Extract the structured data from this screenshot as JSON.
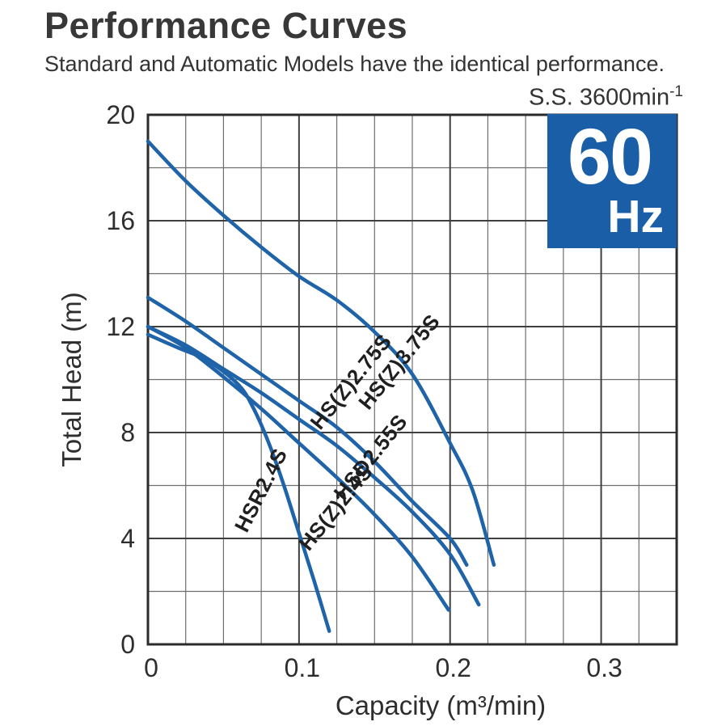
{
  "header": {
    "title": "Performance Curves",
    "subtitle": "Standard and Automatic Models have the identical performance.",
    "speed_note_base": "S.S. 3600min",
    "speed_note_sup": "-1"
  },
  "badge": {
    "value": "60",
    "unit": "Hz",
    "color": "#1a5ea8"
  },
  "colors": {
    "curve": "#1f63a8",
    "grid_minor": "#6e6e6e",
    "grid_major": "#3f3f3f",
    "axis_border": "#2b2b2b",
    "text": "#2e2e2e",
    "curve_label": "#1f1f1f"
  },
  "chart_data": {
    "type": "line",
    "title": "Performance Curves",
    "xlabel": "Capacity (m³/min)",
    "ylabel": "Total Head (m)",
    "xlim": [
      0,
      0.35
    ],
    "ylim": [
      0,
      20
    ],
    "x_ticks": [
      "0",
      "0.1",
      "0.2",
      "0.3"
    ],
    "x_tick_values": [
      0,
      0.1,
      0.2,
      0.3
    ],
    "y_ticks": [
      "0",
      "4",
      "8",
      "12",
      "16",
      "20"
    ],
    "y_tick_values": [
      0,
      4,
      8,
      12,
      16,
      20
    ],
    "x_minor_step": 0.025,
    "y_minor_step": 2,
    "grid": true,
    "legend": "labels-on-curves",
    "series": [
      {
        "name": "HS(Z)3.75S",
        "points": [
          [
            0,
            19
          ],
          [
            0.025,
            17.5
          ],
          [
            0.05,
            16.2
          ],
          [
            0.075,
            15.0
          ],
          [
            0.1,
            13.9
          ],
          [
            0.125,
            13.0
          ],
          [
            0.15,
            11.8
          ],
          [
            0.175,
            10.2
          ],
          [
            0.2,
            7.6
          ],
          [
            0.215,
            5.8
          ],
          [
            0.229,
            3.0
          ]
        ],
        "label_at": [
          0.17,
          10.5
        ],
        "label_rotation": -51
      },
      {
        "name": "HS(Z)2.75S",
        "points": [
          [
            0,
            13.1
          ],
          [
            0.025,
            12.2
          ],
          [
            0.05,
            11.2
          ],
          [
            0.075,
            10.2
          ],
          [
            0.1,
            9.2
          ],
          [
            0.125,
            8.2
          ],
          [
            0.15,
            6.9
          ],
          [
            0.175,
            5.4
          ],
          [
            0.2,
            4.0
          ],
          [
            0.211,
            3.0
          ]
        ],
        "label_at": [
          0.138,
          9.75
        ],
        "label_rotation": -51
      },
      {
        "name": "HSD2.55S",
        "points": [
          [
            0,
            12
          ],
          [
            0.025,
            11.3
          ],
          [
            0.05,
            10.4
          ],
          [
            0.075,
            9.5
          ],
          [
            0.1,
            8.5
          ],
          [
            0.125,
            7.5
          ],
          [
            0.15,
            6.3
          ],
          [
            0.175,
            5.0
          ],
          [
            0.2,
            3.4
          ],
          [
            0.219,
            1.5
          ]
        ],
        "label_at": [
          0.151,
          6.9
        ],
        "label_rotation": -51
      },
      {
        "name": "HS(Z)2.4S",
        "points": [
          [
            0,
            12
          ],
          [
            0.025,
            11.2
          ],
          [
            0.05,
            10.1
          ],
          [
            0.075,
            8.9
          ],
          [
            0.1,
            7.6
          ],
          [
            0.125,
            6.3
          ],
          [
            0.15,
            4.9
          ],
          [
            0.175,
            3.3
          ],
          [
            0.199,
            1.3
          ]
        ],
        "label_at": [
          0.128,
          5.0
        ],
        "label_rotation": -51
      },
      {
        "name": "HSR2.4S",
        "points": [
          [
            0,
            11.7
          ],
          [
            0.02,
            11.2
          ],
          [
            0.04,
            10.7
          ],
          [
            0.06,
            9.8
          ],
          [
            0.07,
            8.9
          ],
          [
            0.08,
            7.6
          ],
          [
            0.09,
            6.0
          ],
          [
            0.1,
            4.2
          ],
          [
            0.11,
            2.4
          ],
          [
            0.12,
            0.5
          ]
        ],
        "label_at": [
          0.079,
          5.7
        ],
        "label_rotation": -63
      }
    ]
  }
}
